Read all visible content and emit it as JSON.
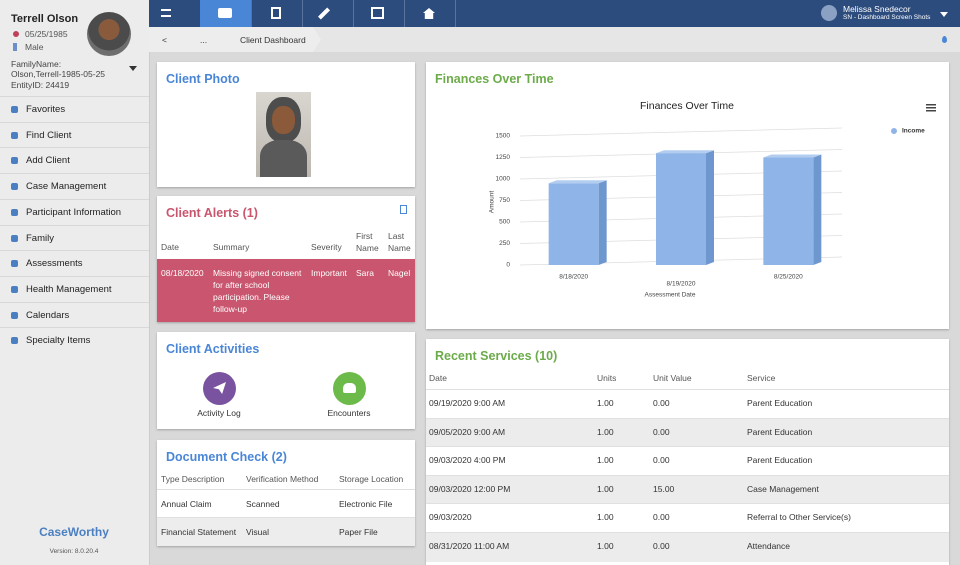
{
  "profile": {
    "name": "Terrell Olson",
    "dob": "05/25/1985",
    "gender": "Male",
    "family": "FamilyName: Olson,Terrell-1985-05-25",
    "entity": "EntityID: 24419"
  },
  "nav": [
    "Favorites",
    "Find Client",
    "Add Client",
    "Case Management",
    "Participant Information",
    "Family",
    "Assessments",
    "Health Management",
    "Calendars",
    "Specialty Items"
  ],
  "brand": {
    "name": "CaseWorthy",
    "version": "Version: 8.0.20.4"
  },
  "user": {
    "name": "Melissa Snedecor",
    "context": "SN - Dashboard Screen Shots"
  },
  "breadcrumb": [
    "<",
    "...",
    "Client Dashboard"
  ],
  "photo": {
    "title": "Client Photo"
  },
  "alerts": {
    "title": "Client Alerts (1)",
    "headers": [
      "Date",
      "Summary",
      "Severity",
      "First Name",
      "Last Name"
    ],
    "rows": [
      [
        "08/18/2020",
        "Missing signed consent for after school participation. Please follow-up",
        "Important",
        "Sara",
        "Nagel"
      ]
    ]
  },
  "activities": {
    "title": "Client Activities",
    "items": [
      "Activity Log",
      "Encounters"
    ]
  },
  "documents": {
    "title": "Document Check (2)",
    "headers": [
      "Type Description",
      "Verification Method",
      "Storage Location"
    ],
    "rows": [
      [
        "Annual Claim",
        "Scanned",
        "Electronic File"
      ],
      [
        "Financial Statement",
        "Visual",
        "Paper File"
      ]
    ]
  },
  "finances": {
    "title": "Finances Over Time"
  },
  "services": {
    "title": "Recent Services (10)",
    "headers": [
      "Date",
      "Units",
      "Unit Value",
      "Service"
    ],
    "rows": [
      [
        "09/19/2020 9:00 AM",
        "1.00",
        "0.00",
        "Parent Education"
      ],
      [
        "09/05/2020 9:00 AM",
        "1.00",
        "0.00",
        "Parent Education"
      ],
      [
        "09/03/2020 4:00 PM",
        "1.00",
        "0.00",
        "Parent Education"
      ],
      [
        "09/03/2020 12:00 PM",
        "1.00",
        "15.00",
        "Case Management"
      ],
      [
        "09/03/2020",
        "1.00",
        "0.00",
        "Referral to Other Service(s)"
      ],
      [
        "08/31/2020 11:00 AM",
        "1.00",
        "0.00",
        "Attendance"
      ]
    ]
  },
  "chart_data": {
    "type": "bar",
    "title": "Finances Over Time",
    "x_label": "Assessment Date",
    "y_label": "Amount",
    "categories": [
      "8/18/2020",
      "8/19/2020",
      "8/25/2020"
    ],
    "series": [
      {
        "name": "Income",
        "color": "#8fb4e8",
        "values": [
          950,
          1300,
          1250
        ]
      }
    ],
    "ylim": [
      0,
      1500
    ],
    "yticks": [
      0,
      250,
      500,
      750,
      1000,
      1250,
      1500
    ],
    "grid": true,
    "legend": "top-right"
  }
}
